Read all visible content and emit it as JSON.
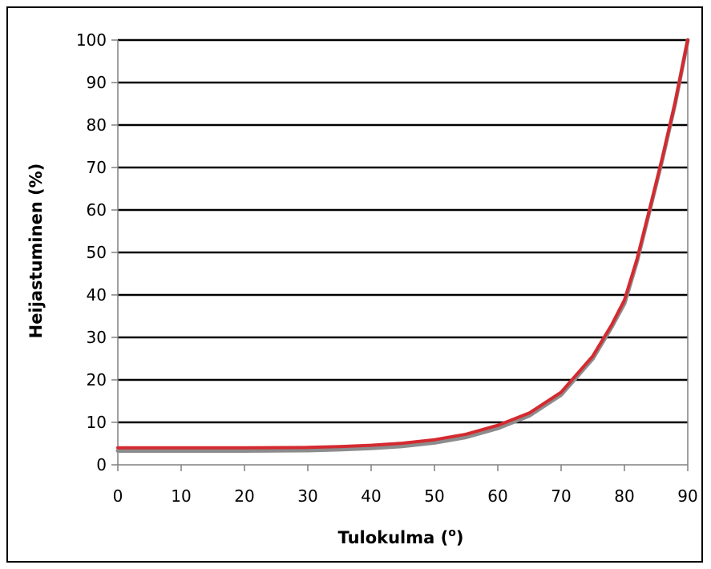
{
  "chart_data": {
    "type": "line",
    "title": "",
    "xlabel": "Tulokulma (°)",
    "xlabel_main": "Tulokulma (",
    "xlabel_degree": "o",
    "xlabel_close": ")",
    "ylabel": "Heijastuminen (%)",
    "xlim": [
      0,
      90
    ],
    "ylim": [
      0,
      100
    ],
    "x_ticks": [
      0,
      10,
      20,
      30,
      40,
      50,
      60,
      70,
      80,
      90
    ],
    "y_ticks": [
      0,
      10,
      20,
      30,
      40,
      50,
      60,
      70,
      80,
      90,
      100
    ],
    "grid": true,
    "series": [
      {
        "color": "#8c8c8c",
        "x": [
          0,
          10,
          20,
          30,
          35,
          40,
          45,
          50,
          55,
          60,
          65,
          70,
          75,
          78,
          80,
          82,
          84,
          86,
          88,
          90
        ],
        "y": [
          3.3,
          3.3,
          3.3,
          3.4,
          3.6,
          3.9,
          4.4,
          5.2,
          6.5,
          8.6,
          11.6,
          16.5,
          25.0,
          32.5,
          38.0,
          48.0,
          60.0,
          72.0,
          85.0,
          100
        ]
      },
      {
        "color": "#d42a30",
        "x": [
          0,
          10,
          20,
          30,
          35,
          40,
          45,
          50,
          55,
          60,
          65,
          70,
          75,
          78,
          80,
          82,
          84,
          86,
          88,
          90
        ],
        "y": [
          4.0,
          4.0,
          4.0,
          4.1,
          4.3,
          4.6,
          5.1,
          5.9,
          7.2,
          9.3,
          12.2,
          17.1,
          25.6,
          33.0,
          38.8,
          48.5,
          60.3,
          72.4,
          85.3,
          100
        ]
      }
    ]
  }
}
